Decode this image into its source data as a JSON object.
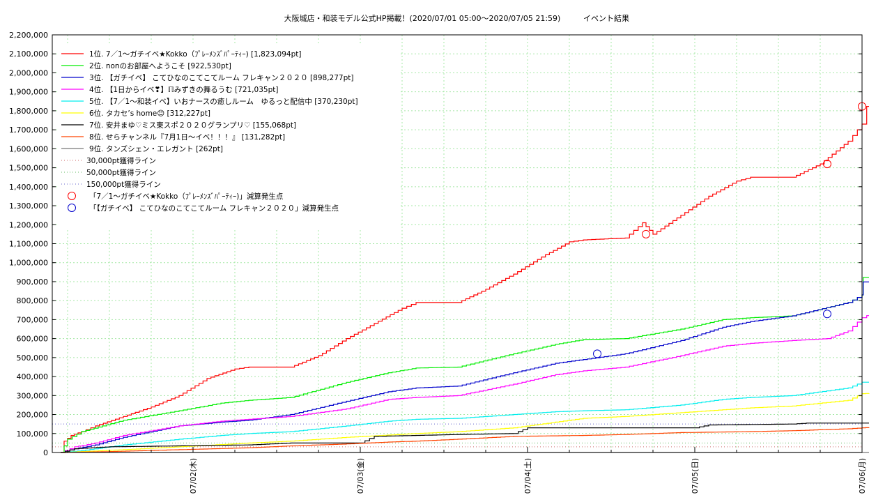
{
  "chart_data": {
    "type": "line",
    "title": "大阪城店・和装モデル公式HP掲載！(2020/07/01 05:00〜2020/07/05 21:59)",
    "subtitle": "イベント結果",
    "xlabel": "",
    "ylabel": "",
    "xlim": [
      "2020/07/01 05:00",
      "2020/07/06 00:00"
    ],
    "ylim": [
      0,
      2200000
    ],
    "y_ticks": [
      "0",
      "100,000",
      "200,000",
      "300,000",
      "400,000",
      "500,000",
      "600,000",
      "700,000",
      "800,000",
      "900,000",
      "1,000,000",
      "1,100,000",
      "1,200,000",
      "1,300,000",
      "1,400,000",
      "1,500,000",
      "1,600,000",
      "1,700,000",
      "1,800,000",
      "1,900,000",
      "2,000,000",
      "2,100,000",
      "2,200,000"
    ],
    "x_ticks": [
      {
        "time": "2020/07/02 00:00",
        "label": "07/02(木)"
      },
      {
        "time": "2020/07/03 00:00",
        "label": "07/03(金)"
      },
      {
        "time": "2020/07/04 00:00",
        "label": "07/04(土)"
      },
      {
        "time": "2020/07/05 00:00",
        "label": "07/05(日)"
      },
      {
        "time": "2020/07/06 00:00",
        "label": "07/06(月)"
      }
    ],
    "grid": true,
    "legend_position": "top-left",
    "series": [
      {
        "name": "1位. 7／1〜ガチイベ★Kokko（ﾌﾟﾚｰﾒﾝｽﾞﾊﾟｰﾃｨｰ) [1,823,094pt]",
        "color": "#ff0000",
        "points": [
          [
            "2020/07/01 05:00",
            0
          ],
          [
            "2020/07/01 05:30",
            60000
          ],
          [
            "2020/07/01 06:30",
            90000
          ],
          [
            "2020/07/01 08:00",
            110000
          ],
          [
            "2020/07/01 10:00",
            140000
          ],
          [
            "2020/07/01 14:00",
            190000
          ],
          [
            "2020/07/01 18:00",
            240000
          ],
          [
            "2020/07/01 22:00",
            300000
          ],
          [
            "2020/07/02 02:00",
            390000
          ],
          [
            "2020/07/02 06:00",
            440000
          ],
          [
            "2020/07/02 08:00",
            450000
          ],
          [
            "2020/07/02 14:00",
            450000
          ],
          [
            "2020/07/02 18:00",
            510000
          ],
          [
            "2020/07/02 22:00",
            600000
          ],
          [
            "2020/07/03 02:00",
            680000
          ],
          [
            "2020/07/03 06:00",
            760000
          ],
          [
            "2020/07/03 08:00",
            790000
          ],
          [
            "2020/07/03 14:00",
            790000
          ],
          [
            "2020/07/03 18:00",
            860000
          ],
          [
            "2020/07/03 22:00",
            940000
          ],
          [
            "2020/07/04 02:00",
            1030000
          ],
          [
            "2020/07/04 06:00",
            1110000
          ],
          [
            "2020/07/04 08:00",
            1120000
          ],
          [
            "2020/07/04 14:00",
            1130000
          ],
          [
            "2020/07/04 16:30",
            1210000
          ],
          [
            "2020/07/04 18:00",
            1150000
          ],
          [
            "2020/07/04 22:00",
            1250000
          ],
          [
            "2020/07/05 02:00",
            1350000
          ],
          [
            "2020/07/05 06:00",
            1430000
          ],
          [
            "2020/07/05 08:00",
            1450000
          ],
          [
            "2020/07/05 14:00",
            1450000
          ],
          [
            "2020/07/05 18:00",
            1520000
          ],
          [
            "2020/07/05 22:00",
            1640000
          ],
          [
            "2020/07/06 00:00",
            1730000
          ],
          [
            "2020/07/06 00:40",
            1823094
          ],
          [
            "2020/07/06 01:00",
            1823094
          ]
        ]
      },
      {
        "name": "2位. nonのお部屋へようこそ [922,530pt]",
        "color": "#00ee00",
        "points": [
          [
            "2020/07/01 05:00",
            0
          ],
          [
            "2020/07/01 06:00",
            70000
          ],
          [
            "2020/07/01 08:00",
            110000
          ],
          [
            "2020/07/01 14:00",
            170000
          ],
          [
            "2020/07/01 22:00",
            220000
          ],
          [
            "2020/07/02 04:00",
            260000
          ],
          [
            "2020/07/02 08:00",
            275000
          ],
          [
            "2020/07/02 14:00",
            290000
          ],
          [
            "2020/07/02 22:00",
            370000
          ],
          [
            "2020/07/03 04:00",
            420000
          ],
          [
            "2020/07/03 08:00",
            445000
          ],
          [
            "2020/07/03 14:00",
            450000
          ],
          [
            "2020/07/03 22:00",
            520000
          ],
          [
            "2020/07/04 04:00",
            570000
          ],
          [
            "2020/07/04 08:00",
            595000
          ],
          [
            "2020/07/04 14:00",
            600000
          ],
          [
            "2020/07/04 22:00",
            650000
          ],
          [
            "2020/07/05 04:00",
            700000
          ],
          [
            "2020/07/05 08:00",
            710000
          ],
          [
            "2020/07/05 14:00",
            720000
          ],
          [
            "2020/07/05 22:00",
            790000
          ],
          [
            "2020/07/06 00:00",
            830000
          ],
          [
            "2020/07/06 00:10",
            922530
          ],
          [
            "2020/07/06 01:00",
            922530
          ]
        ]
      },
      {
        "name": "3位. 【ガチイベ】 こてひなのこてこてルーム フレキャン２０２０ [898,277pt]",
        "color": "#0000cc",
        "points": [
          [
            "2020/07/01 05:00",
            0
          ],
          [
            "2020/07/01 07:00",
            20000
          ],
          [
            "2020/07/01 10:00",
            40000
          ],
          [
            "2020/07/01 14:00",
            80000
          ],
          [
            "2020/07/01 22:00",
            140000
          ],
          [
            "2020/07/02 04:00",
            160000
          ],
          [
            "2020/07/02 08:00",
            170000
          ],
          [
            "2020/07/02 14:00",
            200000
          ],
          [
            "2020/07/02 22:00",
            270000
          ],
          [
            "2020/07/03 04:00",
            320000
          ],
          [
            "2020/07/03 08:00",
            340000
          ],
          [
            "2020/07/03 14:00",
            350000
          ],
          [
            "2020/07/03 22:00",
            420000
          ],
          [
            "2020/07/04 04:00",
            470000
          ],
          [
            "2020/07/04 08:00",
            490000
          ],
          [
            "2020/07/04 14:00",
            520000
          ],
          [
            "2020/07/04 22:00",
            590000
          ],
          [
            "2020/07/05 04:00",
            660000
          ],
          [
            "2020/07/05 08:00",
            690000
          ],
          [
            "2020/07/05 14:00",
            720000
          ],
          [
            "2020/07/05 22:00",
            790000
          ],
          [
            "2020/07/06 00:00",
            830000
          ],
          [
            "2020/07/06 00:10",
            898277
          ],
          [
            "2020/07/06 01:00",
            898277
          ]
        ]
      },
      {
        "name": "4位. 【1日からイベ❣】ℿみずきの舞るうむ [721,035pt]",
        "color": "#ff00ff",
        "points": [
          [
            "2020/07/01 05:00",
            0
          ],
          [
            "2020/07/01 07:00",
            30000
          ],
          [
            "2020/07/01 10:00",
            50000
          ],
          [
            "2020/07/01 14:00",
            90000
          ],
          [
            "2020/07/01 22:00",
            140000
          ],
          [
            "2020/07/02 04:00",
            165000
          ],
          [
            "2020/07/02 08:00",
            175000
          ],
          [
            "2020/07/02 14:00",
            190000
          ],
          [
            "2020/07/02 22:00",
            230000
          ],
          [
            "2020/07/03 04:00",
            280000
          ],
          [
            "2020/07/03 08:00",
            290000
          ],
          [
            "2020/07/03 14:00",
            300000
          ],
          [
            "2020/07/03 22:00",
            360000
          ],
          [
            "2020/07/04 04:00",
            410000
          ],
          [
            "2020/07/04 08:00",
            430000
          ],
          [
            "2020/07/04 14:00",
            450000
          ],
          [
            "2020/07/04 22:00",
            510000
          ],
          [
            "2020/07/05 04:00",
            560000
          ],
          [
            "2020/07/05 08:00",
            575000
          ],
          [
            "2020/07/05 14:00",
            590000
          ],
          [
            "2020/07/05 19:00",
            600000
          ],
          [
            "2020/07/05 22:00",
            640000
          ],
          [
            "2020/07/06 00:00",
            710000
          ],
          [
            "2020/07/06 00:40",
            721035
          ],
          [
            "2020/07/06 01:00",
            721035
          ]
        ]
      },
      {
        "name": "5位. 【7／1〜和装イベ】いおナースの癒しルーム　ゆるっと配信中 [370,230pt]",
        "color": "#00eeee",
        "points": [
          [
            "2020/07/01 05:00",
            0
          ],
          [
            "2020/07/01 08:00",
            10000
          ],
          [
            "2020/07/01 14:00",
            40000
          ],
          [
            "2020/07/01 22:00",
            70000
          ],
          [
            "2020/07/02 04:00",
            90000
          ],
          [
            "2020/07/02 08:00",
            100000
          ],
          [
            "2020/07/02 14:00",
            110000
          ],
          [
            "2020/07/02 22:00",
            140000
          ],
          [
            "2020/07/03 04:00",
            165000
          ],
          [
            "2020/07/03 08:00",
            175000
          ],
          [
            "2020/07/03 14:00",
            180000
          ],
          [
            "2020/07/03 22:00",
            200000
          ],
          [
            "2020/07/04 04:00",
            215000
          ],
          [
            "2020/07/04 08:00",
            220000
          ],
          [
            "2020/07/04 14:00",
            225000
          ],
          [
            "2020/07/04 22:00",
            250000
          ],
          [
            "2020/07/05 04:00",
            280000
          ],
          [
            "2020/07/05 08:00",
            290000
          ],
          [
            "2020/07/05 14:00",
            300000
          ],
          [
            "2020/07/05 22:00",
            340000
          ],
          [
            "2020/07/06 00:00",
            370230
          ],
          [
            "2020/07/06 01:00",
            370230
          ]
        ]
      },
      {
        "name": "6位. タカセ’s home😊 [312,227pt]",
        "color": "#ffff00",
        "points": [
          [
            "2020/07/01 05:00",
            0
          ],
          [
            "2020/07/01 14:00",
            15000
          ],
          [
            "2020/07/01 22:00",
            30000
          ],
          [
            "2020/07/02 08:00",
            50000
          ],
          [
            "2020/07/02 14:00",
            60000
          ],
          [
            "2020/07/02 22:00",
            80000
          ],
          [
            "2020/07/03 08:00",
            100000
          ],
          [
            "2020/07/03 14:00",
            110000
          ],
          [
            "2020/07/03 22:00",
            130000
          ],
          [
            "2020/07/04 04:00",
            160000
          ],
          [
            "2020/07/04 08:00",
            180000
          ],
          [
            "2020/07/04 14:00",
            190000
          ],
          [
            "2020/07/04 22:00",
            210000
          ],
          [
            "2020/07/05 04:00",
            225000
          ],
          [
            "2020/07/05 08:00",
            235000
          ],
          [
            "2020/07/05 14:00",
            245000
          ],
          [
            "2020/07/05 22:00",
            275000
          ],
          [
            "2020/07/06 00:00",
            310000
          ],
          [
            "2020/07/06 01:00",
            312227
          ]
        ]
      },
      {
        "name": "7位. 安井まゆ♡ミス東スポ２０２０グランプリ♡ [155,068pt]",
        "color": "#000000",
        "points": [
          [
            "2020/07/01 05:00",
            0
          ],
          [
            "2020/07/01 07:00",
            20000
          ],
          [
            "2020/07/01 12:00",
            30000
          ],
          [
            "2020/07/02 08:00",
            40000
          ],
          [
            "2020/07/02 14:00",
            50000
          ],
          [
            "2020/07/03 00:00",
            50000
          ],
          [
            "2020/07/03 02:00",
            85000
          ],
          [
            "2020/07/03 14:00",
            95000
          ],
          [
            "2020/07/03 22:00",
            100000
          ],
          [
            "2020/07/04 00:00",
            130000
          ],
          [
            "2020/07/04 14:00",
            130000
          ],
          [
            "2020/07/05 00:00",
            130000
          ],
          [
            "2020/07/05 02:00",
            145000
          ],
          [
            "2020/07/05 14:00",
            150000
          ],
          [
            "2020/07/05 16:00",
            155000
          ],
          [
            "2020/07/06 01:00",
            155068
          ]
        ]
      },
      {
        "name": "8位. せらチャンネル『7月1日〜イベ！！！』 [131,282pt]",
        "color": "#ff4400",
        "points": [
          [
            "2020/07/01 05:00",
            0
          ],
          [
            "2020/07/01 12:00",
            5000
          ],
          [
            "2020/07/01 22:00",
            15000
          ],
          [
            "2020/07/02 08:00",
            25000
          ],
          [
            "2020/07/02 14:00",
            35000
          ],
          [
            "2020/07/02 22:00",
            45000
          ],
          [
            "2020/07/03 04:00",
            55000
          ],
          [
            "2020/07/03 08:00",
            60000
          ],
          [
            "2020/07/03 14:00",
            70000
          ],
          [
            "2020/07/03 22:00",
            85000
          ],
          [
            "2020/07/04 08:00",
            90000
          ],
          [
            "2020/07/04 14:00",
            95000
          ],
          [
            "2020/07/04 22:00",
            105000
          ],
          [
            "2020/07/05 08:00",
            110000
          ],
          [
            "2020/07/05 14:00",
            115000
          ],
          [
            "2020/07/05 22:00",
            125000
          ],
          [
            "2020/07/06 00:00",
            130000
          ],
          [
            "2020/07/06 01:00",
            131282
          ]
        ]
      },
      {
        "name": "9位. タンズシェン・エレガント [262pt]",
        "color": "#777777",
        "points": [
          [
            "2020/07/01 05:00",
            0
          ],
          [
            "2020/07/01 06:00",
            262
          ],
          [
            "2020/07/06 01:00",
            262
          ]
        ]
      }
    ],
    "reference_lines": [
      {
        "name": "30,000pt獲得ライン",
        "value": 30000,
        "color": "#cc6666"
      },
      {
        "name": "50,000pt獲得ライン",
        "value": 50000,
        "color": "#66bb66"
      },
      {
        "name": "150,000pt獲得ライン",
        "value": 150000,
        "color": "#6666cc"
      }
    ],
    "markers": [
      {
        "name": "「7／1〜ガチイベ★Kokko（ﾌﾟﾚｰﾒﾝｽﾞﾊﾟｰﾃｨｰ)」減算発生点",
        "color": "#ff0000",
        "points": [
          [
            "2020/07/04 17:00",
            1150000
          ],
          [
            "2020/07/05 19:00",
            1520000
          ],
          [
            "2020/07/06 00:00",
            1823094
          ]
        ]
      },
      {
        "name": "「【ガチイベ】 こてひなのこてこてルーム フレキャン２０２０」減算発生点",
        "color": "#0000cc",
        "points": [
          [
            "2020/07/04 10:00",
            520000
          ],
          [
            "2020/07/05 19:00",
            730000
          ]
        ]
      }
    ]
  }
}
